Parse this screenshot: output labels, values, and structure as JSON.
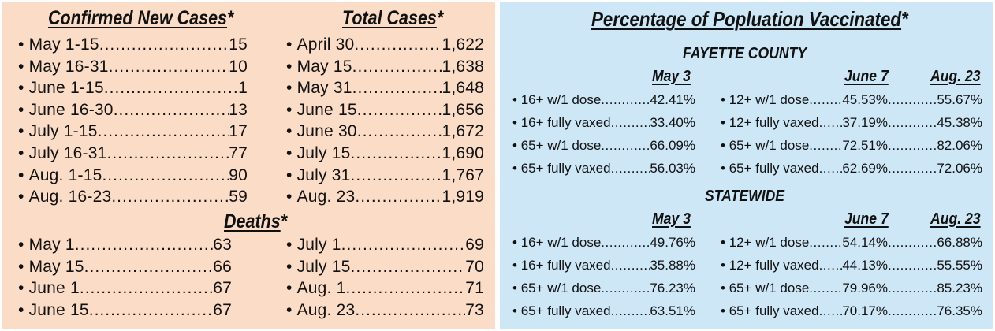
{
  "confirmed_new_cases": {
    "title": "Confirmed New Cases",
    "star": "*",
    "items": [
      {
        "label": "May 1-15",
        "value": "15"
      },
      {
        "label": "May 16-31",
        "value": "10"
      },
      {
        "label": "June 1-15",
        "value": "1"
      },
      {
        "label": "June 16-30",
        "value": "13"
      },
      {
        "label": "July 1-15",
        "value": "17"
      },
      {
        "label": "July 16-31",
        "value": "77"
      },
      {
        "label": "Aug. 1-15",
        "value": "90"
      },
      {
        "label": "Aug. 16-23",
        "value": "59"
      }
    ]
  },
  "total_cases": {
    "title": "Total Cases",
    "star": "*",
    "items": [
      {
        "label": "April 30",
        "value": "1,622"
      },
      {
        "label": "May 15",
        "value": "1,638"
      },
      {
        "label": "May 31",
        "value": "1,648"
      },
      {
        "label": "June 15",
        "value": "1,656"
      },
      {
        "label": "June 30",
        "value": "1,672"
      },
      {
        "label": "July 15",
        "value": "1,690"
      },
      {
        "label": "July 31",
        "value": "1,767"
      },
      {
        "label": "Aug. 23",
        "value": "1,919"
      }
    ]
  },
  "deaths": {
    "title": "Deaths",
    "star": "*",
    "left": [
      {
        "label": "May 1",
        "value": "63"
      },
      {
        "label": "May 15",
        "value": "66"
      },
      {
        "label": "June 1",
        "value": "67"
      },
      {
        "label": "June 15",
        "value": "67"
      }
    ],
    "right": [
      {
        "label": "July 1",
        "value": "69"
      },
      {
        "label": "July 15",
        "value": "70"
      },
      {
        "label": "Aug. 1",
        "value": "71"
      },
      {
        "label": "Aug. 23",
        "value": "73"
      }
    ]
  },
  "vaccination": {
    "title": "Percentage of Popluation Vaccinated",
    "star": "*",
    "sections": [
      {
        "name": "FAYETTE COUNTY",
        "col_may": "May 3",
        "col_june": "June 7",
        "col_aug": "Aug. 23",
        "left": [
          {
            "label": "16+ w/1 dose",
            "value": "42.41%"
          },
          {
            "label": "16+ fully vaxed",
            "value": "33.40%"
          },
          {
            "label": "65+ w/1 dose",
            "value": "66.09%"
          },
          {
            "label": "65+ fully vaxed",
            "value": "56.03%"
          }
        ],
        "right": [
          {
            "label": "12+ w/1 dose",
            "june": "45.53%",
            "aug": "55.67%"
          },
          {
            "label": "12+ fully vaxed",
            "june": "37.19%",
            "aug": "45.38%"
          },
          {
            "label": "65+ w/1 dose",
            "june": "72.51%",
            "aug": "82.06%"
          },
          {
            "label": "65+ fully vaxed",
            "june": "62.69%",
            "aug": "72.06%"
          }
        ]
      },
      {
        "name": "STATEWIDE",
        "col_may": "May 3",
        "col_june": "June 7",
        "col_aug": "Aug. 23",
        "left": [
          {
            "label": "16+ w/1 dose",
            "value": "49.76%"
          },
          {
            "label": "16+ fully vaxed",
            "value": "35.88%"
          },
          {
            "label": "65+ w/1 dose",
            "value": "76.23%"
          },
          {
            "label": "65+ fully vaxed",
            "value": "63.51%"
          }
        ],
        "right": [
          {
            "label": "12+ w/1 dose",
            "june": "54.14%",
            "aug": "66.88%"
          },
          {
            "label": "12+ fully vaxed",
            "june": "44.13%",
            "aug": "55.55%"
          },
          {
            "label": "65+ w/1 dose",
            "june": "79.96%",
            "aug": "85.23%"
          },
          {
            "label": "65+ fully vaxed",
            "june": "70.17%",
            "aug": "76.35%"
          }
        ]
      }
    ]
  }
}
